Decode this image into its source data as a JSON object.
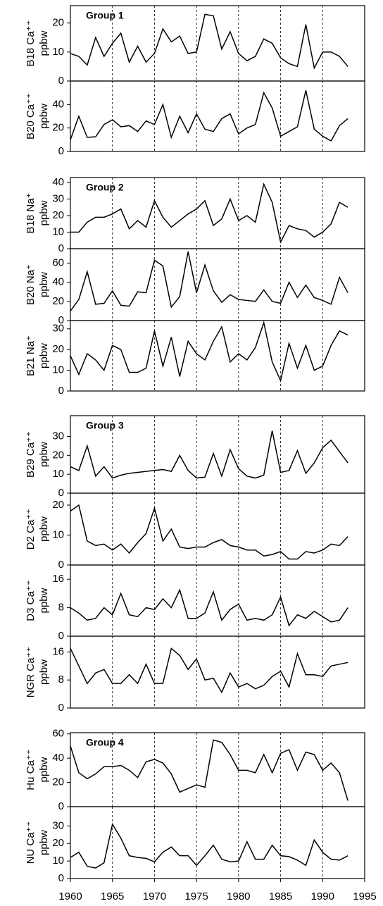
{
  "chart_data": [
    {
      "type": "line",
      "annotation": "Group 1",
      "ylabel": [
        "B18 Ca⁺⁺",
        "ppbw"
      ],
      "xlim": [
        1960,
        1995
      ],
      "ylim": [
        0,
        26
      ],
      "yticks": [
        0,
        10,
        20
      ],
      "color": "#000000",
      "x": [
        1960,
        1961,
        1962,
        1963,
        1964,
        1965,
        1966,
        1967,
        1968,
        1969,
        1970,
        1971,
        1972,
        1973,
        1974,
        1975,
        1976,
        1977,
        1978,
        1979,
        1980,
        1981,
        1982,
        1983,
        1984,
        1985,
        1986,
        1987,
        1988,
        1989,
        1990,
        1991,
        1992,
        1993
      ],
      "values": [
        9.5,
        8.5,
        5.5,
        15,
        8.5,
        13,
        16.5,
        6.5,
        12,
        6.5,
        9.5,
        18,
        13.5,
        15.5,
        9.5,
        10,
        23,
        22.5,
        11,
        17,
        9.5,
        7,
        8.5,
        14.5,
        13,
        8,
        6,
        5,
        19.5,
        4.5,
        10,
        10,
        8.5,
        5
      ]
    },
    {
      "type": "line",
      "ylabel": [
        "B20 Ca⁺⁺",
        "ppbw"
      ],
      "xlim": [
        1960,
        1995
      ],
      "ylim": [
        0,
        60
      ],
      "yticks": [
        0,
        20,
        40
      ],
      "color": "#000000",
      "x": [
        1960,
        1961,
        1962,
        1963,
        1964,
        1965,
        1966,
        1967,
        1968,
        1969,
        1970,
        1971,
        1972,
        1973,
        1974,
        1975,
        1976,
        1977,
        1978,
        1979,
        1980,
        1981,
        1982,
        1983,
        1984,
        1985,
        1986,
        1987,
        1988,
        1989,
        1990,
        1991,
        1992,
        1993
      ],
      "values": [
        10,
        30,
        12,
        12.5,
        23,
        27,
        21,
        22,
        17,
        26,
        23,
        40,
        12,
        30,
        16,
        32,
        19,
        17,
        28,
        32,
        15,
        20,
        23,
        50,
        37,
        13,
        17,
        21,
        52,
        19,
        13,
        9,
        22,
        28
      ]
    },
    {
      "type": "line",
      "annotation": "Group 2",
      "ylabel": [
        "B18 Na⁺",
        "ppbw"
      ],
      "xlim": [
        1960,
        1995
      ],
      "ylim": [
        0,
        43
      ],
      "yticks": [
        0,
        10,
        20,
        30,
        40
      ],
      "color": "#000000",
      "x": [
        1960,
        1961,
        1962,
        1963,
        1964,
        1965,
        1966,
        1967,
        1968,
        1969,
        1970,
        1971,
        1972,
        1973,
        1974,
        1975,
        1976,
        1977,
        1978,
        1979,
        1980,
        1981,
        1982,
        1983,
        1984,
        1985,
        1986,
        1987,
        1988,
        1989,
        1990,
        1991,
        1992,
        1993
      ],
      "values": [
        10,
        10,
        16,
        19,
        19,
        21,
        24,
        12,
        17,
        13,
        29,
        19,
        13,
        17,
        21,
        24,
        29,
        14,
        18,
        30,
        17,
        20,
        16,
        39,
        28,
        4,
        14,
        12,
        11,
        7,
        10,
        15,
        28,
        25
      ]
    },
    {
      "type": "line",
      "ylabel": [
        "B20 Na⁺",
        "ppbw"
      ],
      "xlim": [
        1960,
        1995
      ],
      "ylim": [
        0,
        75
      ],
      "yticks": [
        0,
        20,
        40,
        60
      ],
      "color": "#000000",
      "x": [
        1960,
        1961,
        1962,
        1963,
        1964,
        1965,
        1966,
        1967,
        1968,
        1969,
        1970,
        1971,
        1972,
        1973,
        1974,
        1975,
        1976,
        1977,
        1978,
        1979,
        1980,
        1981,
        1982,
        1983,
        1984,
        1985,
        1986,
        1987,
        1988,
        1989,
        1990,
        1991,
        1992,
        1993
      ],
      "values": [
        10,
        22,
        51,
        17,
        18,
        31,
        16,
        15,
        30,
        29,
        63,
        57,
        14,
        25,
        72,
        29,
        58,
        31,
        19,
        27,
        22,
        21,
        20,
        32,
        20,
        18,
        40,
        24,
        37,
        24,
        21,
        17,
        45,
        29
      ]
    },
    {
      "type": "line",
      "ylabel": [
        "B21 Na⁺",
        "ppbw"
      ],
      "xlim": [
        1960,
        1995
      ],
      "ylim": [
        0,
        34
      ],
      "yticks": [
        0,
        10,
        20,
        30
      ],
      "color": "#000000",
      "x": [
        1960,
        1961,
        1962,
        1963,
        1964,
        1965,
        1966,
        1967,
        1968,
        1969,
        1970,
        1971,
        1972,
        1973,
        1974,
        1975,
        1976,
        1977,
        1978,
        1979,
        1980,
        1981,
        1982,
        1983,
        1984,
        1985,
        1986,
        1987,
        1988,
        1989,
        1990,
        1991,
        1992,
        1993
      ],
      "values": [
        17,
        8,
        18,
        15,
        10,
        22,
        20,
        9,
        9,
        11,
        29,
        12,
        26,
        7,
        24,
        18,
        15,
        24,
        31,
        14,
        18,
        15,
        21,
        33,
        14,
        5,
        23,
        11,
        22,
        10,
        12,
        22,
        29,
        27
      ]
    },
    {
      "type": "line",
      "annotation": "Group 3",
      "ylabel": [
        "B29 Ca⁺⁺",
        "ppbw"
      ],
      "xlim": [
        1960,
        1995
      ],
      "ylim": [
        0,
        41
      ],
      "yticks": [
        0,
        10,
        20,
        30
      ],
      "color": "#000000",
      "x": [
        1960,
        1961,
        1962,
        1963,
        1964,
        1965,
        1966,
        1967,
        1968,
        1969,
        1970,
        1971,
        1972,
        1973,
        1974,
        1975,
        1976,
        1977,
        1978,
        1979,
        1980,
        1981,
        1982,
        1983,
        1984,
        1985,
        1986,
        1987,
        1988,
        1989,
        1990,
        1991,
        1992,
        1993
      ],
      "values": [
        14,
        12,
        25,
        9,
        14,
        8,
        9.5,
        10.5,
        11,
        11.5,
        12,
        12.5,
        11.5,
        20,
        12,
        8,
        8.5,
        21,
        9,
        23,
        13,
        9,
        8,
        9.5,
        33,
        11,
        12,
        22.5,
        10.5,
        16,
        24,
        28,
        22,
        16
      ]
    },
    {
      "type": "line",
      "ylabel": [
        "D2 Ca⁺⁺",
        "ppbw"
      ],
      "xlim": [
        1960,
        1995
      ],
      "ylim": [
        0,
        24
      ],
      "yticks": [
        0,
        10,
        20
      ],
      "color": "#000000",
      "x": [
        1960,
        1961,
        1962,
        1963,
        1964,
        1965,
        1966,
        1967,
        1968,
        1969,
        1970,
        1971,
        1972,
        1973,
        1974,
        1975,
        1976,
        1977,
        1978,
        1979,
        1980,
        1981,
        1982,
        1983,
        1984,
        1985,
        1986,
        1987,
        1988,
        1989,
        1990,
        1991,
        1992,
        1993
      ],
      "values": [
        18,
        20,
        8,
        6.5,
        7,
        5,
        7,
        4,
        7.5,
        10.5,
        19,
        8,
        12,
        6,
        5.5,
        6,
        6,
        7.5,
        8.5,
        6.5,
        6,
        5,
        5,
        3,
        3.5,
        4.5,
        2,
        2,
        4.5,
        4,
        5,
        7,
        6.5,
        9.5
      ]
    },
    {
      "type": "line",
      "ylabel": [
        "D3 Ca⁺⁺",
        "ppbw"
      ],
      "xlim": [
        1960,
        1995
      ],
      "ylim": [
        0,
        20
      ],
      "yticks": [
        0,
        8,
        16
      ],
      "color": "#000000",
      "x": [
        1960,
        1961,
        1962,
        1963,
        1964,
        1965,
        1966,
        1967,
        1968,
        1969,
        1970,
        1971,
        1972,
        1973,
        1974,
        1975,
        1976,
        1977,
        1978,
        1979,
        1980,
        1981,
        1982,
        1983,
        1984,
        1985,
        1986,
        1987,
        1988,
        1989,
        1990,
        1991,
        1992,
        1993
      ],
      "values": [
        8,
        6.5,
        4.5,
        5,
        8,
        6,
        12,
        6,
        5.5,
        8,
        7.5,
        10.5,
        8,
        13,
        5,
        5,
        6.5,
        12.5,
        4.5,
        7.5,
        9,
        4.5,
        5,
        4.5,
        6,
        11,
        3,
        6,
        5,
        7,
        5.5,
        4,
        4.5,
        8
      ]
    },
    {
      "type": "line",
      "ylabel": [
        "NGR Ca⁺⁺",
        "ppbw"
      ],
      "xlim": [
        1960,
        1995
      ],
      "ylim": [
        0,
        20.5
      ],
      "yticks": [
        0,
        8,
        16
      ],
      "color": "#000000",
      "x": [
        1960,
        1961,
        1962,
        1963,
        1964,
        1965,
        1966,
        1967,
        1968,
        1969,
        1970,
        1971,
        1972,
        1973,
        1974,
        1975,
        1976,
        1977,
        1978,
        1979,
        1980,
        1981,
        1982,
        1983,
        1984,
        1985,
        1986,
        1987,
        1988,
        1989,
        1990,
        1991,
        1992,
        1993
      ],
      "values": [
        17,
        12,
        7,
        10,
        11,
        7,
        7,
        9.5,
        7,
        12.5,
        7,
        7,
        17,
        15,
        11,
        14,
        8,
        8.5,
        4.5,
        10,
        6,
        7,
        5.5,
        6.5,
        9,
        10.5,
        6,
        15.5,
        9.5,
        9.5,
        9,
        12,
        12.5,
        13
      ]
    },
    {
      "type": "line",
      "annotation": "Group 4",
      "ylabel": [
        "Hu Ca⁺⁺",
        "ppbw"
      ],
      "xlim": [
        1960,
        1995
      ],
      "ylim": [
        0,
        61
      ],
      "yticks": [
        0,
        20,
        40,
        60
      ],
      "color": "#000000",
      "x": [
        1960,
        1961,
        1962,
        1963,
        1964,
        1965,
        1966,
        1967,
        1968,
        1969,
        1970,
        1971,
        1972,
        1973,
        1974,
        1975,
        1976,
        1977,
        1978,
        1979,
        1980,
        1981,
        1982,
        1983,
        1984,
        1985,
        1986,
        1987,
        1988,
        1989,
        1990,
        1991,
        1992,
        1993
      ],
      "values": [
        50,
        28,
        23,
        27,
        33,
        33,
        34,
        30,
        24,
        37,
        39,
        36,
        27,
        12,
        15,
        18,
        16,
        55,
        53,
        43,
        30,
        30,
        28,
        43,
        28,
        44,
        47,
        30,
        45,
        43,
        30,
        36,
        28,
        5
      ]
    },
    {
      "type": "line",
      "ylabel": [
        "NU Ca⁺⁺",
        "ppbw"
      ],
      "xlim": [
        1960,
        1995
      ],
      "ylim": [
        0,
        41
      ],
      "yticks": [
        0,
        10,
        20,
        30
      ],
      "color": "#000000",
      "xticks": [
        1960,
        1965,
        1970,
        1975,
        1980,
        1985,
        1990,
        1995
      ],
      "x": [
        1960,
        1961,
        1962,
        1963,
        1964,
        1965,
        1966,
        1967,
        1968,
        1969,
        1970,
        1971,
        1972,
        1973,
        1974,
        1975,
        1976,
        1977,
        1978,
        1979,
        1980,
        1981,
        1982,
        1983,
        1984,
        1985,
        1986,
        1987,
        1988,
        1989,
        1990,
        1991,
        1992,
        1993
      ],
      "values": [
        12,
        15,
        7,
        6,
        9,
        31,
        23,
        13,
        12,
        11.5,
        9.5,
        15,
        18,
        13,
        13,
        7.5,
        13,
        19,
        11,
        9.5,
        10,
        21,
        11,
        11,
        19,
        13,
        12.5,
        10.5,
        7.5,
        22,
        15,
        11,
        10.5,
        13
      ]
    }
  ]
}
